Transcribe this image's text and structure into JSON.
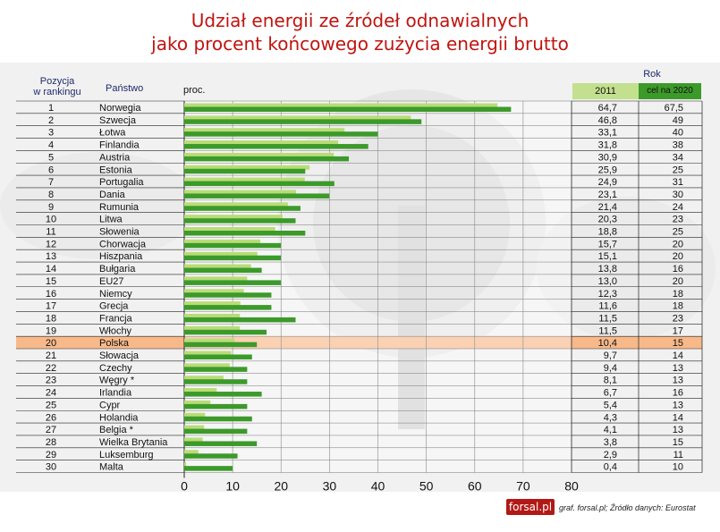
{
  "title_line1": "Udział energii ze źródeł odnawialnych",
  "title_line2": "jako procent końcowego zużycia energii brutto",
  "headers": {
    "position": "Pozycja\nw rankingu",
    "country": "Państwo",
    "unit": "proc.",
    "year_group": "Rok",
    "col_2011": "2011",
    "col_2020": "cel na 2020"
  },
  "colors": {
    "bar_2020": "#3c9a2a",
    "bar_2011": "#b9dc78",
    "highlight": "#f7b98a",
    "title": "#c0140f"
  },
  "chart_data": {
    "type": "bar",
    "orientation": "horizontal",
    "title": "Udział energii ze źródeł odnawialnych jako procent końcowego zużycia energii brutto",
    "xlabel": "proc.",
    "xlim": [
      0,
      80
    ],
    "xticks": [
      0,
      10,
      20,
      30,
      40,
      50,
      60,
      70,
      80
    ],
    "highlight_category": "Polska",
    "positions": [
      1,
      2,
      3,
      4,
      5,
      6,
      7,
      8,
      9,
      10,
      11,
      12,
      13,
      14,
      15,
      16,
      17,
      18,
      19,
      20,
      21,
      22,
      23,
      24,
      25,
      26,
      27,
      28,
      29,
      30
    ],
    "categories": [
      "Norwegia",
      "Szwecja",
      "Łotwa",
      "Finlandia",
      "Austria",
      "Estonia",
      "Portugalia",
      "Dania",
      "Rumunia",
      "Litwa",
      "Słowenia",
      "Chorwacja",
      "Hiszpania",
      "Bułgaria",
      "EU27",
      "Niemcy",
      "Grecja",
      "Francja",
      "Włochy",
      "Polska",
      "Słowacja",
      "Czechy",
      "Węgry *",
      "Irlandia",
      "Cypr",
      "Holandia",
      "Belgia *",
      "Wielka Brytania",
      "Luksemburg",
      "Malta"
    ],
    "series": [
      {
        "name": "2011",
        "values_text": [
          "64,7",
          "46,8",
          "33,1",
          "31,8",
          "30,9",
          "25,9",
          "24,9",
          "23,1",
          "21,4",
          "20,3",
          "18,8",
          "15,7",
          "15,1",
          "13,8",
          "13,0",
          "12,3",
          "11,6",
          "11,5",
          "11,5",
          "10,4",
          "9,7",
          "9,4",
          "8,1",
          "6,7",
          "5,4",
          "4,3",
          "4,1",
          "3,8",
          "2,9",
          "0,4"
        ],
        "values": [
          64.7,
          46.8,
          33.1,
          31.8,
          30.9,
          25.9,
          24.9,
          23.1,
          21.4,
          20.3,
          18.8,
          15.7,
          15.1,
          13.8,
          13.0,
          12.3,
          11.6,
          11.5,
          11.5,
          10.4,
          9.7,
          9.4,
          8.1,
          6.7,
          5.4,
          4.3,
          4.1,
          3.8,
          2.9,
          0.4
        ]
      },
      {
        "name": "cel na 2020",
        "values_text": [
          "67,5",
          "49",
          "40",
          "38",
          "34",
          "25",
          "31",
          "30",
          "24",
          "23",
          "25",
          "20",
          "20",
          "16",
          "20",
          "18",
          "18",
          "23",
          "17",
          "15",
          "14",
          "13",
          "13",
          "16",
          "13",
          "14",
          "13",
          "15",
          "11",
          "10"
        ],
        "values": [
          67.5,
          49,
          40,
          38,
          34,
          25,
          31,
          30,
          24,
          23,
          25,
          20,
          20,
          16,
          20,
          18,
          18,
          23,
          17,
          15,
          14,
          13,
          13,
          16,
          13,
          14,
          13,
          15,
          11,
          10
        ]
      }
    ]
  },
  "footer": {
    "brand": "forsal.pl",
    "source": "graf. forsal.pl;  Źródło danych: Eurostat"
  }
}
